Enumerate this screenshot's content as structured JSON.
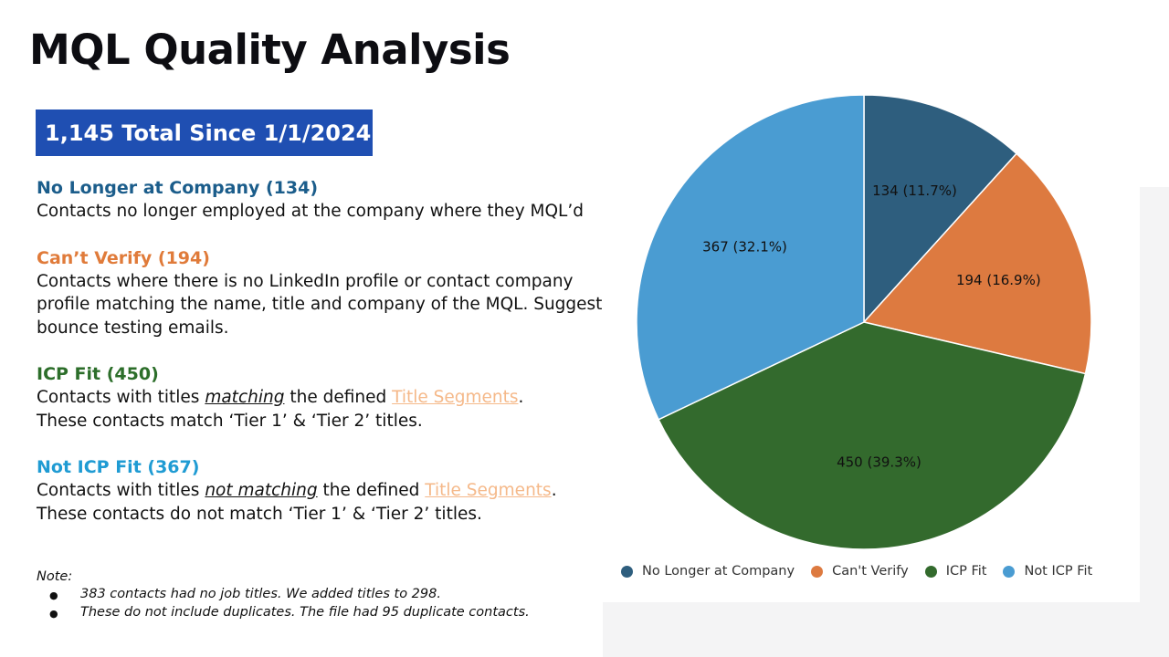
{
  "title": "MQL Quality Analysis",
  "banner": "1,145 Total Since 1/1/2024",
  "categories": [
    {
      "title": "No Longer at Company (134)",
      "color": "#1b5d8b",
      "desc": "Contacts no longer employed at the company where they MQL’d"
    },
    {
      "title": "Can’t Verify (194)",
      "color": "#e07b3a",
      "desc": "Contacts where there is no LinkedIn profile or contact company profile matching the name, title and company of the MQL. Suggest bounce testing emails."
    },
    {
      "title": "ICP Fit (450)",
      "color": "#2c6e2a",
      "desc_pre": "Contacts with titles ",
      "desc_emph": "matching",
      "desc_mid": " the defined ",
      "desc_link": "Title Segments",
      "desc_post": ".",
      "desc_line2": "These contacts match ‘Tier 1’ & ‘Tier 2’ titles."
    },
    {
      "title": "Not ICP Fit (367)",
      "color": "#1f9bd3",
      "desc_pre": "Contacts with titles ",
      "desc_emph": "not matching",
      "desc_mid": " the defined ",
      "desc_link": "Title Segments",
      "desc_post": ".",
      "desc_line2": "These contacts do not match ‘Tier 1’ & ‘Tier 2’ titles."
    }
  ],
  "note": {
    "label": "Note:",
    "items": [
      "383 contacts had no job titles. We added titles to 298.",
      "These do not include duplicates. The file had 95 duplicate contacts."
    ]
  },
  "chart_data": {
    "type": "pie",
    "categories": [
      "No Longer at Company",
      "Can't Verify",
      "ICP Fit",
      "Not ICP Fit"
    ],
    "values": [
      134,
      194,
      450,
      367
    ],
    "labels": [
      "134 (11.7%)",
      "194 (16.9%)",
      "450 (39.3%)",
      "367 (32.1%)"
    ],
    "colors": [
      "#2e5e7e",
      "#dd7a40",
      "#336a2d",
      "#4a9cd2"
    ],
    "legend_position": "bottom"
  }
}
